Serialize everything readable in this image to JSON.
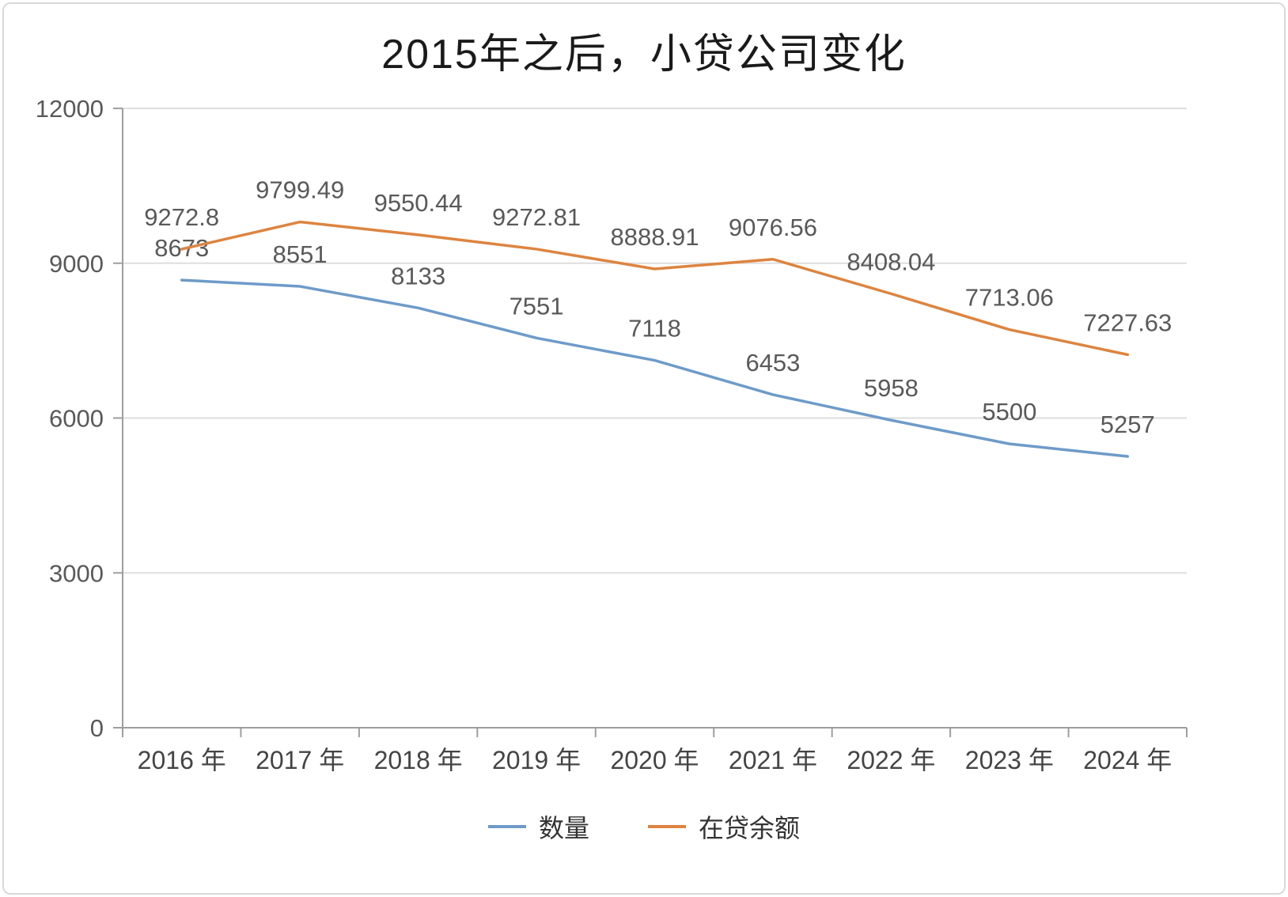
{
  "chart_data": {
    "type": "line",
    "title": "2015年之后，小贷公司变化",
    "categories": [
      "2016 年",
      "2017 年",
      "2018 年",
      "2019 年",
      "2020 年",
      "2021 年",
      "2022 年",
      "2023 年",
      "2024 年"
    ],
    "series": [
      {
        "id": "quantity",
        "name": "数量",
        "color": "#6e9bc8",
        "values": [
          8673,
          8551,
          8133,
          7551,
          7118,
          6453,
          5958,
          5500,
          5257
        ]
      },
      {
        "id": "balance",
        "name": "在贷余额",
        "color": "#dd8440",
        "values": [
          9272.8,
          9799.49,
          9550.44,
          9272.81,
          8888.91,
          9076.56,
          8408.04,
          7713.06,
          7227.63
        ]
      }
    ],
    "xlabel": "",
    "ylabel": "",
    "ylim": [
      0,
      12000
    ],
    "yticks": [
      0,
      3000,
      6000,
      9000,
      12000
    ],
    "grid": true,
    "data_labels": true,
    "legend_position": "bottom",
    "colors": {
      "axis": "#9e9e9e",
      "gridline": "#dedede",
      "tick_text": "#595959",
      "label_text": "#595959",
      "title_text": "#1a1a1a"
    }
  }
}
